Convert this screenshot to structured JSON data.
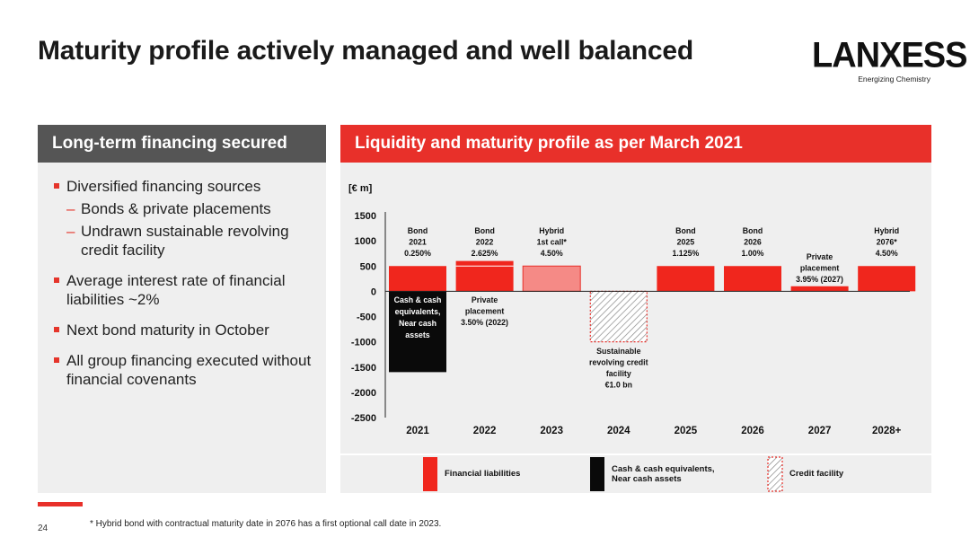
{
  "slide": {
    "title": "Maturity profile actively managed and well balanced",
    "page_number": "24",
    "footnote": "* Hybrid bond with contractual maturity date in 2076 has a first optional call date in 2023."
  },
  "logo": {
    "wordmark": "LANXESS",
    "tagline": "Energizing Chemistry"
  },
  "left_panel": {
    "header": "Long-term financing secured",
    "bullets": [
      {
        "text": "Diversified financing sources",
        "sub": [
          "Bonds & private placements",
          "Undrawn sustainable revolving credit facility"
        ]
      },
      {
        "text": "Average interest rate of financial liabilities ~2%"
      },
      {
        "text": "Next bond maturity in October"
      },
      {
        "text": "All group financing executed without financial covenants"
      }
    ]
  },
  "right_panel": {
    "header": "Liquidity and maturity profile as per March 2021"
  },
  "colors": {
    "financial_liabilities": "#f0261d",
    "financial_liabilities_light": "#f58a86",
    "cash": "#0a0a0a",
    "credit_facility_hatch": "#e8302a",
    "header_red": "#e8302a",
    "header_grey": "#555555"
  },
  "chart_data": {
    "type": "bar",
    "ylabel": "[€ m]",
    "ylim": [
      -2500,
      1500
    ],
    "yticks": [
      1500,
      1000,
      500,
      0,
      -500,
      -1000,
      -1500,
      -2000,
      -2500
    ],
    "categories": [
      "2021",
      "2022",
      "2023",
      "2024",
      "2025",
      "2026",
      "2027",
      "2028+"
    ],
    "bars": [
      {
        "category": "2021",
        "value": 500,
        "kind": "financial_liabilities",
        "label": [
          "Bond",
          "2021",
          "0.250%"
        ]
      },
      {
        "category": "2021",
        "value": -1600,
        "kind": "cash",
        "label": [
          "Cash & cash",
          "equivalents,",
          "Near cash",
          "assets"
        ]
      },
      {
        "category": "2022",
        "value": 500,
        "kind": "financial_liabilities",
        "label": [
          "Bond",
          "2022",
          "2.625%"
        ]
      },
      {
        "category": "2022",
        "value": 100,
        "stacked_on": 500,
        "kind": "financial_liabilities",
        "label": [
          "Private",
          "placement",
          "3.50% (2022)"
        ]
      },
      {
        "category": "2023",
        "value": 500,
        "kind": "financial_liabilities_light",
        "label": [
          "Hybrid",
          "1st call*",
          "4.50%"
        ]
      },
      {
        "category": "2024",
        "value": -1000,
        "kind": "credit_facility",
        "label": [
          "Sustainable",
          "revolving credit",
          "facility",
          "€1.0 bn"
        ]
      },
      {
        "category": "2025",
        "value": 500,
        "kind": "financial_liabilities",
        "label": [
          "Bond",
          "2025",
          "1.125%"
        ]
      },
      {
        "category": "2026",
        "value": 500,
        "kind": "financial_liabilities",
        "label": [
          "Bond",
          "2026",
          "1.00%"
        ]
      },
      {
        "category": "2027",
        "value": 100,
        "kind": "financial_liabilities",
        "label": [
          "Private",
          "placement",
          "3.95% (2027)"
        ]
      },
      {
        "category": "2028+",
        "value": 500,
        "kind": "financial_liabilities",
        "label": [
          "Hybrid",
          "2076*",
          "4.50%"
        ]
      }
    ],
    "legend": [
      {
        "kind": "financial_liabilities",
        "label": "Financial liabilities"
      },
      {
        "kind": "cash",
        "label": "Cash & cash equivalents, Near cash assets"
      },
      {
        "kind": "credit_facility",
        "label": "Credit facility"
      }
    ],
    "legend_position": "bottom",
    "grid": false
  }
}
